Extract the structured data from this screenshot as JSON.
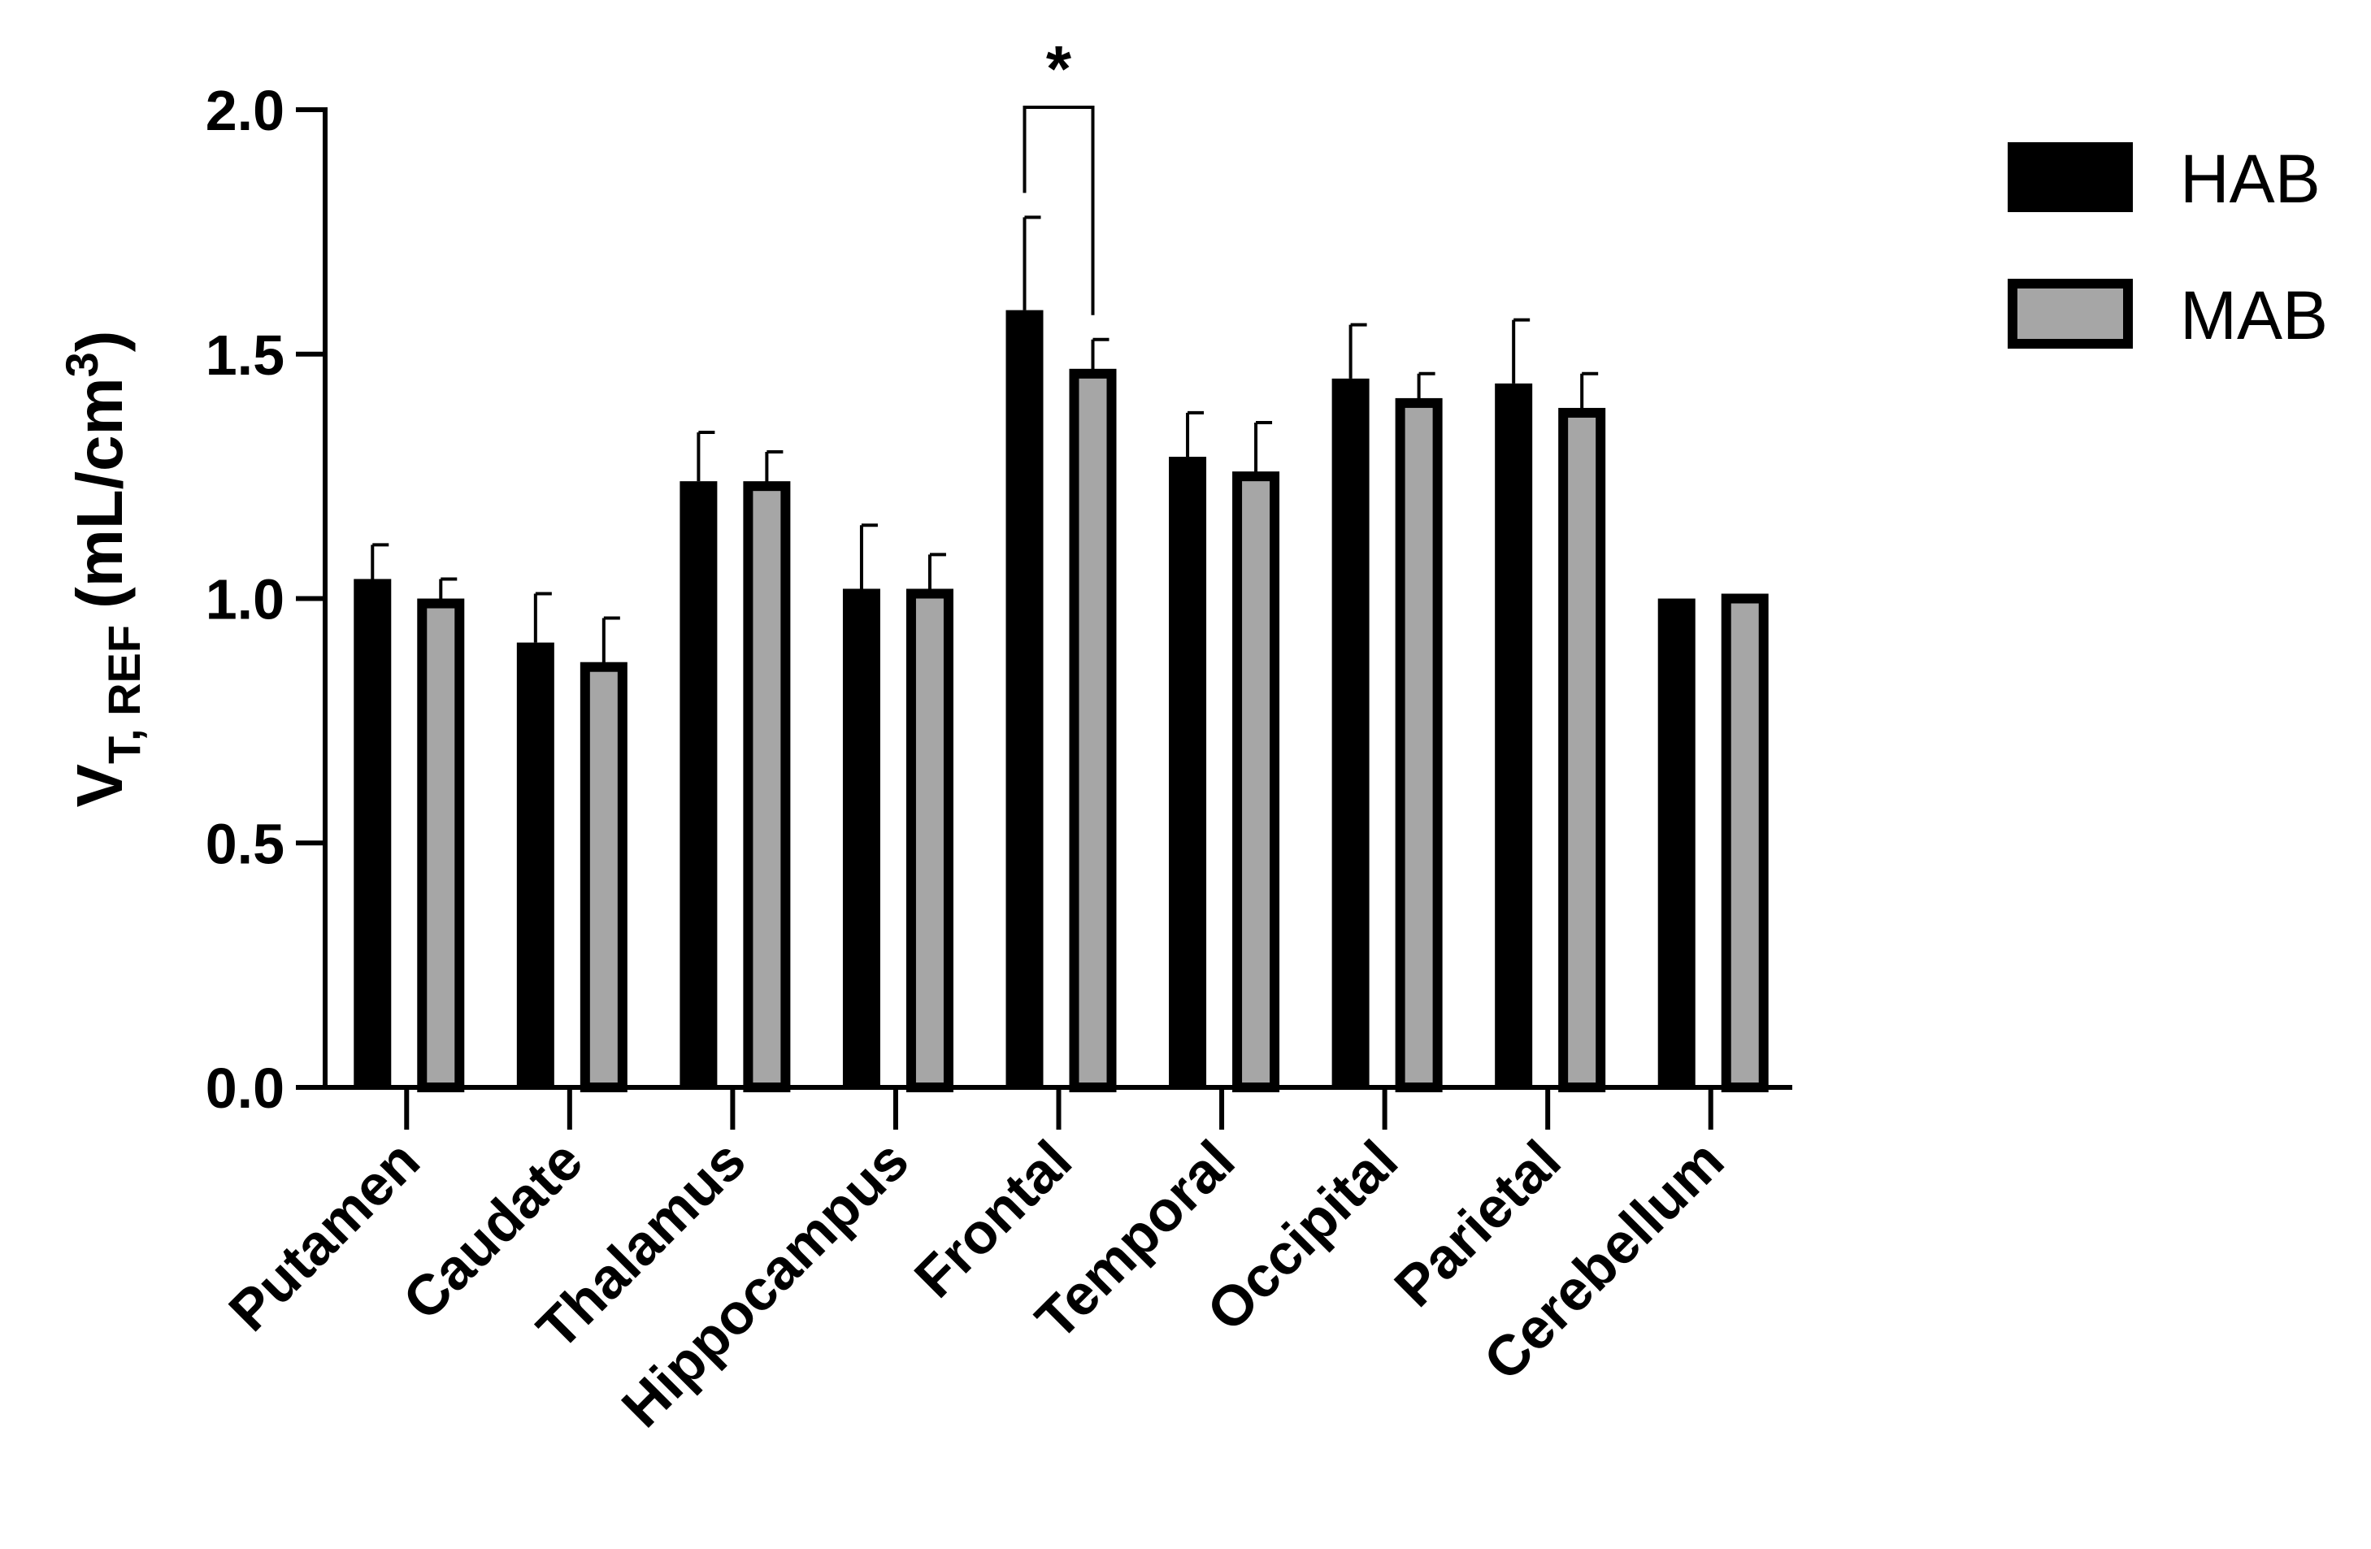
{
  "chart_data": {
    "type": "bar",
    "categories": [
      "Putamen",
      "Caudate",
      "Thalamus",
      "Hippocampus",
      "Frontal",
      "Temporal",
      "Occipital",
      "Parietal",
      "Cerebellum"
    ],
    "series": [
      {
        "name": "HAB",
        "color": "#000000",
        "values": [
          1.04,
          0.91,
          1.24,
          1.02,
          1.59,
          1.29,
          1.45,
          1.44,
          1.0
        ],
        "errors": [
          0.07,
          0.1,
          0.1,
          0.13,
          0.19,
          0.09,
          0.11,
          0.13,
          0
        ]
      },
      {
        "name": "MAB",
        "color": "#a6a6a6",
        "values": [
          0.99,
          0.86,
          1.23,
          1.01,
          1.46,
          1.25,
          1.4,
          1.38,
          1.0
        ],
        "errors": [
          0.05,
          0.1,
          0.07,
          0.08,
          0.07,
          0.11,
          0.06,
          0.08,
          0
        ]
      }
    ],
    "ylabel": {
      "main": "V",
      "sub": "T, REF",
      "unit": "(mL/cm",
      "sup": "3",
      "close": ")"
    },
    "ylim": [
      0,
      2.0
    ],
    "yticks": [
      "0.0",
      "0.5",
      "1.0",
      "1.5",
      "2.0"
    ],
    "grid": false,
    "legend_position": "top-right",
    "annotations": [
      {
        "category": "Frontal",
        "text": "*"
      }
    ]
  }
}
